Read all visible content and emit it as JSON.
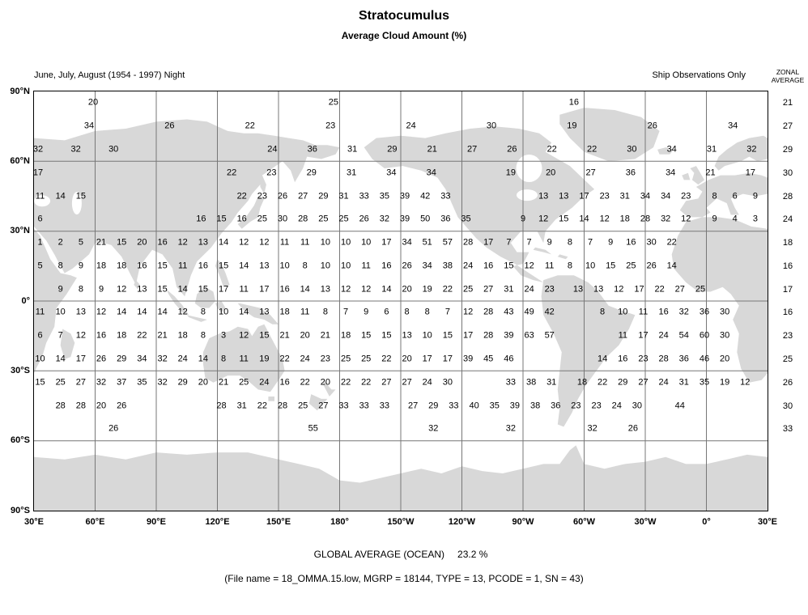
{
  "header": {
    "title": "Stratocumulus",
    "subtitle": "Average Cloud Amount (%)",
    "period": "June, July, August (1954 - 1997) Night",
    "source": "Ship Observations Only",
    "zonal_label_line1": "ZONAL",
    "zonal_label_line2": "AVERAGE"
  },
  "footer": {
    "global_average_label": "GLOBAL AVERAGE (OCEAN)",
    "global_average_value": "23.2 %",
    "file_info": "(File name = 18_OMMA.15.low, MGRP = 18144, TYPE = 13, PCODE = 1, SN = 43)"
  },
  "chart_data": {
    "type": "heatmap",
    "title": "Stratocumulus - Average Cloud Amount (%)",
    "subtitle": "June, July, August (1954 - 1997) Night, Ship Observations Only",
    "unit": "percent cloud amount",
    "projection": "equirectangular world map, longitude 30E eastward through 180 to 30E (Pacific-centered), latitude 90N to 90S",
    "grid_step_degrees": 30,
    "cell_degrees": 10,
    "x_tick_labels": [
      "30°E",
      "60°E",
      "90°E",
      "120°E",
      "150°E",
      "180°",
      "150°W",
      "120°W",
      "90°W",
      "60°W",
      "30°W",
      "0°",
      "30°E"
    ],
    "y_tick_labels": [
      "90°N",
      "60°N",
      "30°N",
      "0°",
      "30°S",
      "60°S",
      "90°S"
    ],
    "global_average_ocean_percent": 23.2,
    "rows": [
      {
        "band": "80N-90N",
        "zonal": 21,
        "runs": [
          {
            "c0": 2.4,
            "v": [
              20
            ]
          },
          {
            "c0": 14.2,
            "v": [
              25
            ]
          },
          {
            "c0": 26,
            "v": [
              16
            ]
          }
        ]
      },
      {
        "band": "70N-80N",
        "zonal": 27,
        "runs": [
          {
            "c0": 2.2,
            "step": 3.95,
            "v": [
              34,
              26,
              22,
              23,
              24,
              30,
              19,
              26,
              34
            ]
          }
        ]
      },
      {
        "band": "60N-70N",
        "zonal": 29,
        "runs": [
          {
            "c0": -0.3,
            "step": 1.85,
            "v": [
              32,
              32,
              30
            ]
          },
          {
            "c0": 11.2,
            "step": 1.96,
            "v": [
              24,
              36,
              31,
              29,
              21,
              27,
              26,
              22,
              22,
              30,
              34,
              31,
              32
            ]
          }
        ]
      },
      {
        "band": "50N-60N",
        "zonal": 30,
        "runs": [
          {
            "c0": -0.3,
            "v": [
              17
            ]
          },
          {
            "c0": 9.2,
            "step": 1.96,
            "v": [
              22,
              23,
              29,
              31,
              34,
              34
            ]
          },
          {
            "c0": 22.9,
            "step": 1.96,
            "v": [
              19,
              20,
              27,
              36,
              34,
              21,
              17
            ]
          }
        ]
      },
      {
        "band": "40N-50N",
        "zonal": 28,
        "runs": [
          {
            "c0": -0.2,
            "v": [
              11,
              14,
              15
            ]
          },
          {
            "c0": 9.7,
            "v": [
              22,
              23,
              26,
              27,
              29,
              31,
              33,
              35,
              39,
              42,
              33
            ]
          },
          {
            "c0": 24.5,
            "v": [
              13,
              13,
              17,
              23,
              31,
              34,
              34,
              23
            ]
          },
          {
            "c0": 32.9,
            "v": [
              8,
              6,
              9
            ]
          }
        ]
      },
      {
        "band": "30N-40N",
        "zonal": 24,
        "runs": [
          {
            "c0": -0.2,
            "v": [
              6
            ]
          },
          {
            "c0": 7.7,
            "v": [
              16,
              15,
              16,
              25,
              30,
              28,
              25,
              25,
              26,
              32,
              39,
              50,
              36,
              35
            ]
          },
          {
            "c0": 23.5,
            "v": [
              9,
              12,
              15,
              14,
              12,
              18,
              28,
              32,
              12
            ]
          },
          {
            "c0": 32.9,
            "v": [
              9,
              4,
              3
            ]
          }
        ]
      },
      {
        "band": "20N-30N",
        "zonal": 18,
        "runs": [
          {
            "c0": -0.2,
            "v": [
              1,
              2,
              5,
              21,
              15,
              20,
              16,
              12,
              13,
              14,
              12,
              12,
              11,
              11,
              10,
              10,
              10,
              17,
              34,
              51,
              57,
              28,
              17,
              7,
              7,
              9,
              8,
              7,
              9,
              16,
              30,
              22
            ]
          }
        ]
      },
      {
        "band": "10N-20N",
        "zonal": 16,
        "runs": [
          {
            "c0": -0.2,
            "v": [
              5,
              8,
              9,
              18,
              18,
              16,
              15,
              11,
              16,
              15,
              14,
              13,
              10,
              8,
              10,
              10,
              11,
              16,
              26,
              34,
              38,
              24,
              16,
              15,
              12,
              11,
              8,
              10,
              15,
              25,
              26,
              14
            ]
          }
        ]
      },
      {
        "band": "0-10N",
        "zonal": 17,
        "runs": [
          {
            "c0": 0.8,
            "v": [
              9,
              8,
              9,
              12,
              13,
              15,
              14,
              15,
              17,
              11,
              17,
              16,
              14,
              13,
              12,
              12,
              14,
              20,
              19,
              22,
              25,
              27,
              31,
              24,
              23
            ]
          },
          {
            "c0": 26.2,
            "v": [
              13,
              13,
              12,
              17,
              22,
              27,
              25
            ]
          }
        ]
      },
      {
        "band": "0-10S",
        "zonal": 16,
        "runs": [
          {
            "c0": -0.2,
            "v": [
              11,
              10,
              13,
              12,
              14,
              14,
              14,
              12,
              8,
              10,
              14,
              13,
              18,
              11,
              8,
              7,
              9,
              6,
              8,
              8,
              7,
              12,
              28,
              43,
              49,
              42
            ]
          },
          {
            "c0": 27.4,
            "v": [
              8,
              10,
              11,
              16,
              32,
              36,
              30
            ]
          }
        ]
      },
      {
        "band": "10S-20S",
        "zonal": 23,
        "runs": [
          {
            "c0": -0.2,
            "v": [
              6,
              7,
              12,
              16,
              18,
              22,
              21,
              18,
              8,
              3,
              12,
              15,
              21,
              20,
              21,
              18,
              15,
              15,
              13,
              10,
              15,
              17,
              28,
              39,
              63,
              57
            ]
          },
          {
            "c0": 28.4,
            "v": [
              11,
              17,
              24,
              54,
              60,
              30
            ]
          }
        ]
      },
      {
        "band": "20S-30S",
        "zonal": 25,
        "runs": [
          {
            "c0": -0.2,
            "v": [
              10,
              14,
              17,
              26,
              29,
              34,
              32,
              24,
              14,
              8,
              11,
              19,
              22,
              24,
              23,
              25,
              25,
              22,
              20,
              17,
              17,
              39,
              45,
              46
            ]
          },
          {
            "c0": 27.4,
            "v": [
              14,
              16,
              23,
              28,
              36,
              46,
              20
            ]
          }
        ]
      },
      {
        "band": "30S-40S",
        "zonal": 26,
        "runs": [
          {
            "c0": -0.2,
            "v": [
              15,
              25,
              27,
              32,
              37,
              35,
              32,
              29,
              20,
              21,
              25,
              24,
              16,
              22,
              20,
              22,
              22,
              27,
              27,
              24,
              30
            ]
          },
          {
            "c0": 22.9,
            "v": [
              33,
              38,
              31
            ]
          },
          {
            "c0": 26.4,
            "v": [
              18,
              22,
              29,
              27,
              24,
              31,
              35,
              19,
              12
            ]
          }
        ]
      },
      {
        "band": "40S-50S",
        "zonal": 30,
        "runs": [
          {
            "c0": 0.8,
            "v": [
              28,
              28,
              20,
              26
            ]
          },
          {
            "c0": 8.7,
            "v": [
              28,
              31,
              22,
              28,
              25,
              27,
              33,
              33,
              33
            ]
          },
          {
            "c0": 18.1,
            "v": [
              27,
              29,
              33,
              40,
              35,
              39,
              38,
              36,
              23,
              23,
              24,
              30
            ]
          },
          {
            "c0": 31.2,
            "v": [
              44
            ]
          }
        ]
      },
      {
        "band": "50S-60S",
        "zonal": 33,
        "runs": [
          {
            "c0": 3.4,
            "v": [
              26
            ]
          },
          {
            "c0": 13.2,
            "v": [
              55
            ]
          },
          {
            "c0": 19.1,
            "v": [
              32
            ]
          },
          {
            "c0": 22.9,
            "v": [
              32
            ]
          },
          {
            "c0": 26.9,
            "v": [
              32
            ]
          },
          {
            "c0": 28.9,
            "v": [
              26
            ]
          }
        ]
      }
    ]
  }
}
